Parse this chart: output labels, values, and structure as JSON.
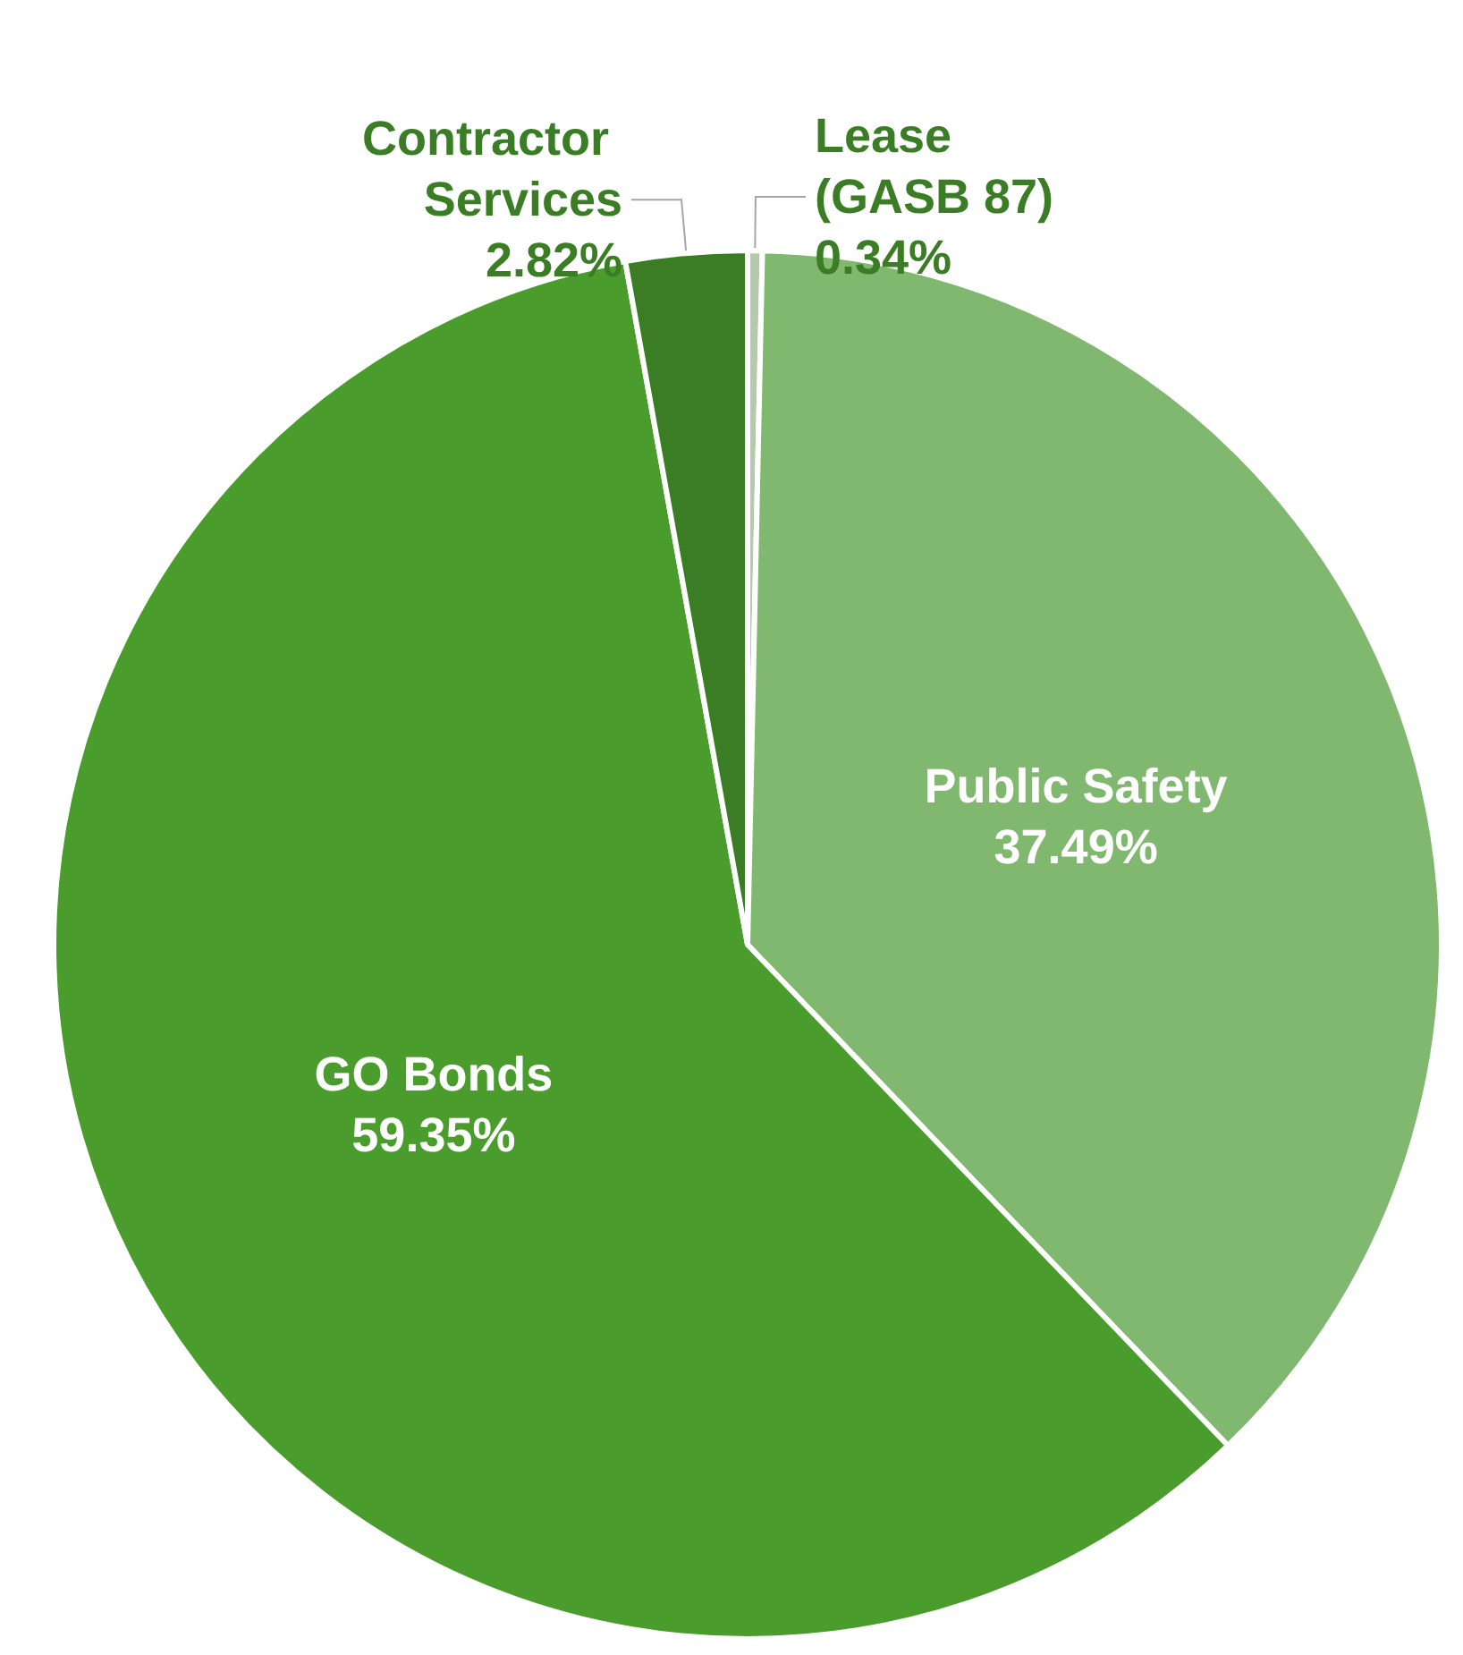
{
  "chart_data": {
    "type": "pie",
    "categories": [
      "Lease (GASB 87)",
      "Public Safety",
      "GO Bonds",
      "Contractor Services"
    ],
    "values": [
      0.34,
      37.49,
      59.35,
      2.82
    ],
    "colors": [
      "#b7c9ad",
      "#80b870",
      "#4a9c2d",
      "#3a7d25"
    ],
    "value_labels": [
      "0.34%",
      "37.49%",
      "59.35%",
      "2.82%"
    ],
    "legend": false
  }
}
